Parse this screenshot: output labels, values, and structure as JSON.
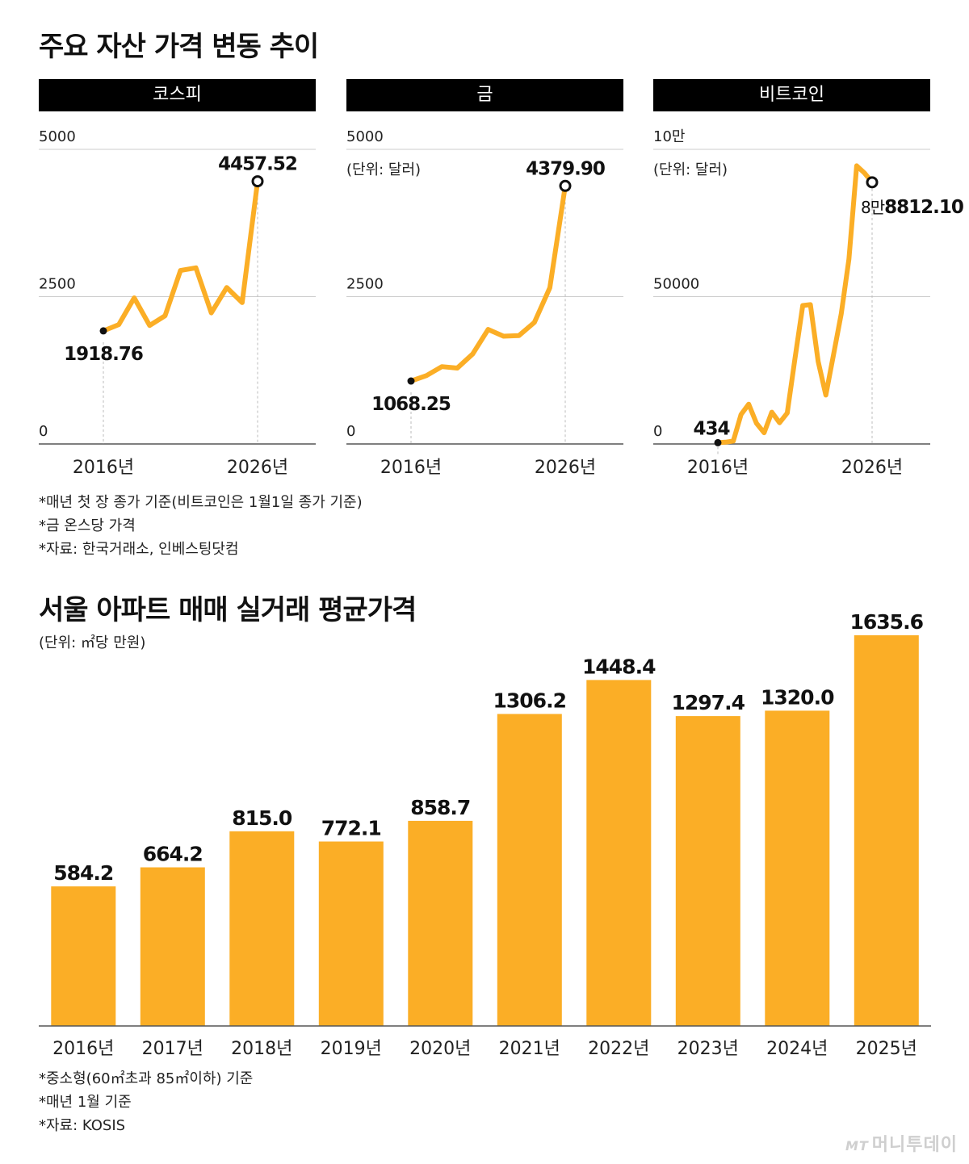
{
  "title_assets": "주요 자산 가격 변동 추이",
  "notes_assets": [
    "*매년 첫 장 종가 기준(비트코인은 1월1일 종가 기준)",
    "*금 온스당 가격",
    "*자료: 한국거래소, 인베스팅닷컴"
  ],
  "title_apt": "서울 아파트 매매 실거래 평균가격",
  "apt_unit": "(단위: ㎡당 만원)",
  "notes_apt": [
    "*중소형(60㎡초과 85㎡이하) 기준",
    "*매년 1월 기준",
    "*자료: KOSIS"
  ],
  "logo": {
    "mark": "MT",
    "text": "머니투데이"
  },
  "colors": {
    "accent": "#FBAE26",
    "header_bg": "#000000",
    "grid": "#cccccc"
  },
  "chart_data": [
    {
      "type": "line",
      "title": "코스피",
      "unit_label": "",
      "ylim": [
        0,
        5000
      ],
      "y_ticks": [
        "0",
        "2500",
        "5000"
      ],
      "x_ticks": [
        "2016년",
        "2026년"
      ],
      "x": [
        2016,
        2017,
        2018,
        2019,
        2020,
        2021,
        2022,
        2023,
        2024,
        2025,
        2026
      ],
      "values": [
        1918.76,
        2026,
        2479,
        2011,
        2175,
        2944,
        2989,
        2225,
        2655,
        2399,
        4457.52
      ],
      "start_label": "1918.76",
      "end_label": "4457.52"
    },
    {
      "type": "line",
      "title": "금",
      "unit_label": "(단위: 달러)",
      "ylim": [
        0,
        5000
      ],
      "y_ticks": [
        "0",
        "2500",
        "5000"
      ],
      "x_ticks": [
        "2016년",
        "2026년"
      ],
      "x": [
        2016,
        2017,
        2018,
        2019,
        2020,
        2021,
        2022,
        2023,
        2024,
        2025,
        2026
      ],
      "values": [
        1068.25,
        1160,
        1313,
        1287,
        1528,
        1944,
        1829,
        1840,
        2063,
        2650,
        4379.9
      ],
      "start_label": "1068.25",
      "end_label": "4379.90"
    },
    {
      "type": "line",
      "title": "비트코인",
      "unit_label": "(단위: 달러)",
      "ylim": [
        0,
        100000
      ],
      "y_ticks": [
        "0",
        "50000",
        "10만"
      ],
      "x_ticks": [
        "2016년",
        "2026년"
      ],
      "x": [
        2016,
        2016.5,
        2017,
        2017.5,
        2018,
        2018.5,
        2019,
        2019.5,
        2020,
        2020.5,
        2021,
        2021.5,
        2022,
        2022.5,
        2023,
        2023.5,
        2024,
        2024.5,
        2025,
        2025.5,
        2026
      ],
      "values": [
        434,
        600,
        998,
        10000,
        13500,
        7000,
        3800,
        10800,
        7200,
        10500,
        29000,
        47000,
        47300,
        28000,
        16600,
        30400,
        44200,
        62700,
        94400,
        92000,
        88812.1
      ],
      "start_label": "434",
      "end_label_prefix": "8만",
      "end_label": "8812.10"
    },
    {
      "type": "bar",
      "title": "서울 아파트 매매 실거래 평균가격",
      "ylabel": "(단위: ㎡당 만원)",
      "ylim": [
        0,
        1700
      ],
      "categories": [
        "2016년",
        "2017년",
        "2018년",
        "2019년",
        "2020년",
        "2021년",
        "2022년",
        "2023년",
        "2024년",
        "2025년"
      ],
      "values": [
        584.2,
        664.2,
        815.0,
        772.1,
        858.7,
        1306.2,
        1448.4,
        1297.4,
        1320.0,
        1635.6
      ],
      "value_labels": [
        "584.2",
        "664.2",
        "815.0",
        "772.1",
        "858.7",
        "1306.2",
        "1448.4",
        "1297.4",
        "1320.0",
        "1635.6"
      ]
    }
  ]
}
